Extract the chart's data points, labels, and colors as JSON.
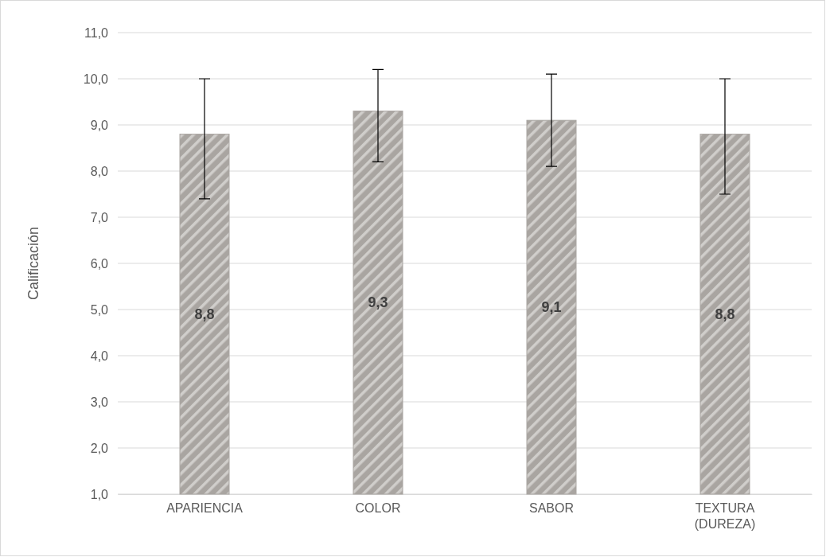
{
  "chart_data": {
    "type": "bar",
    "ylabel": "Calificación",
    "categories": [
      "APARIENCIA",
      "COLOR",
      "SABOR",
      "TEXTURA (DUREZA)"
    ],
    "values": [
      8.8,
      9.3,
      9.1,
      8.8
    ],
    "value_labels": [
      "8,8",
      "9,3",
      "9,1",
      "8,8"
    ],
    "errors": [
      [
        7.4,
        10.0
      ],
      [
        8.2,
        10.2
      ],
      [
        8.1,
        10.1
      ],
      [
        7.5,
        10.0
      ]
    ],
    "color": "#a9a5a1",
    "ylim": [
      1,
      11
    ],
    "yticks": [
      {
        "value": 1,
        "label": "1,0"
      },
      {
        "value": 2,
        "label": "2,0"
      },
      {
        "value": 3,
        "label": "3,0"
      },
      {
        "value": 4,
        "label": "4,0"
      },
      {
        "value": 5,
        "label": "5,0"
      },
      {
        "value": 6,
        "label": "6,0"
      },
      {
        "value": 7,
        "label": "7,0"
      },
      {
        "value": 8,
        "label": "8,0"
      },
      {
        "value": 9,
        "label": "9,0"
      },
      {
        "value": 10,
        "label": "10,0"
      },
      {
        "value": 11,
        "label": "11,0"
      }
    ],
    "grid": "y"
  }
}
